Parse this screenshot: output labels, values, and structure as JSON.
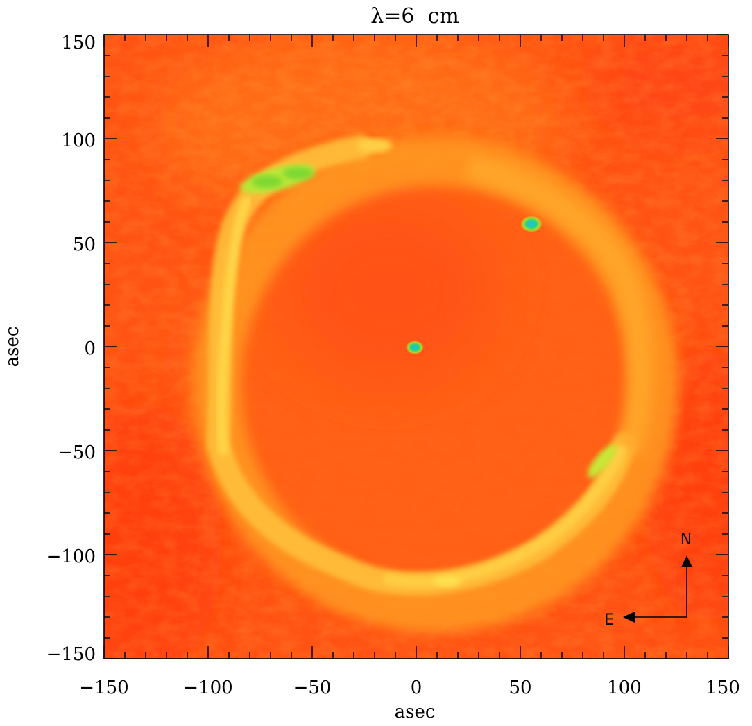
{
  "title": "λ=6  cm",
  "xlabel": "asec",
  "ylabel": "asec",
  "x_ticks": [
    "−150",
    "−100",
    "−50",
    "0",
    "50",
    "100",
    "150"
  ],
  "y_ticks": [
    "−150",
    "−100",
    "−50",
    "0",
    "50",
    "100",
    "150"
  ],
  "axis_range_asec": {
    "x": [
      -150,
      150
    ],
    "y": [
      -150,
      150
    ]
  },
  "compass": {
    "north_label": "N",
    "east_label": "E"
  },
  "colormap": {
    "background": "#ff4a12",
    "mid": "#ff8a1c",
    "ring": "#ffc83a",
    "bright": "#8ee02a",
    "peak": "#2fd0c8"
  },
  "features": {
    "shell": {
      "center_asec": [
        5,
        -15
      ],
      "radius_asec": [
        105,
        108
      ],
      "description_kind": "ring"
    },
    "central_source_asec": [
      0,
      0
    ],
    "secondary_source_asec": [
      56,
      59
    ]
  }
}
